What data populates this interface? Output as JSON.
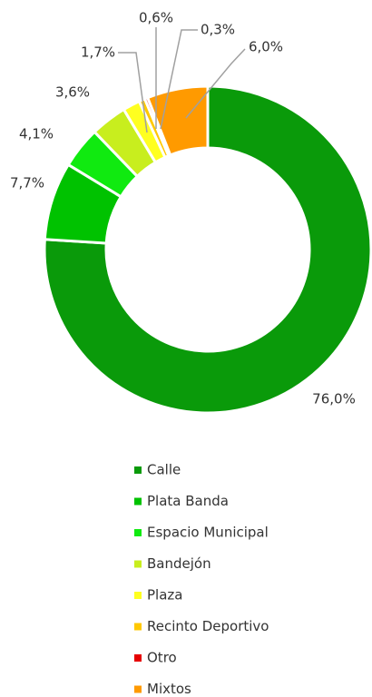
{
  "chart_data": {
    "type": "donut",
    "categories": [
      "Calle",
      "Plata Banda",
      "Espacio Municipal",
      "Bandejón",
      "Plaza",
      "Recinto Deportivo",
      "Otro",
      "Mixtos"
    ],
    "values": [
      76.0,
      7.7,
      4.1,
      3.6,
      1.7,
      0.6,
      0.3,
      6.0
    ],
    "value_labels": [
      "76,0%",
      "7,7%",
      "4,1%",
      "3,6%",
      "1,7%",
      "0,6%",
      "0,3%",
      "6,0%"
    ],
    "colors": [
      "#0a9a0a",
      "#00c200",
      "#10ea10",
      "#c8ee1e",
      "#ffff20",
      "#ffc800",
      "#e60000",
      "#ff9a00"
    ]
  }
}
